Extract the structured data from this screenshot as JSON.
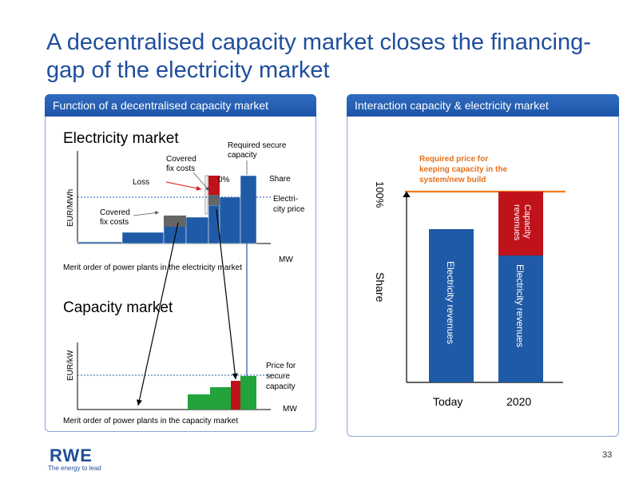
{
  "slide": {
    "title": "A decentralised capacity market closes the financing-gap of the electricity market",
    "page_number": "33"
  },
  "left_panel": {
    "heading": "Function of a decentralised capacity market",
    "electricity_market": {
      "title": "Electricity market",
      "y_axis": "EUR/MWh",
      "x_axis": "MW",
      "caption": "Merit order of power plants in the electricity market",
      "labels": {
        "required_secure_capacity": [
          "Required secure",
          "capacity"
        ],
        "covered_fix_costs_top": [
          "Covered",
          "fix costs"
        ],
        "loss": "Loss",
        "zero_percent": "0%",
        "share": "Share",
        "electricity_price": [
          "Electri-",
          "city price"
        ],
        "covered_fix_costs_left": [
          "Covered",
          "fix costs"
        ]
      }
    },
    "capacity_market": {
      "title": "Capacity market",
      "y_axis": "EUR/kW",
      "x_axis": "MW",
      "caption": "Merit order of power plants in the capacity market",
      "price_label": [
        "Price for",
        "secure",
        "capacity"
      ]
    }
  },
  "right_panel": {
    "heading": "Interaction capacity & electricity market",
    "required_price_label": [
      "Required price for",
      "keeping capacity in the",
      "system/new build"
    ],
    "y_label_top": "100%",
    "y_label": "Share",
    "bars": [
      {
        "category": "Today",
        "segments": [
          {
            "label": "Electricity revenues",
            "color": "#1f5aa6"
          }
        ]
      },
      {
        "category": "2020",
        "segments": [
          {
            "label": "Electricity revenues",
            "color": "#1f5aa6"
          },
          {
            "label": "Capacity revenues",
            "color": "#c0121a"
          }
        ]
      }
    ],
    "colors": {
      "electricity": "#1f5aa6",
      "capacity": "#c0121a",
      "required_price_line": "#f07c1e",
      "required_price_text": "#e8701a"
    }
  },
  "footer": {
    "logo_text": "RWE",
    "tagline": "The energy to lead"
  }
}
